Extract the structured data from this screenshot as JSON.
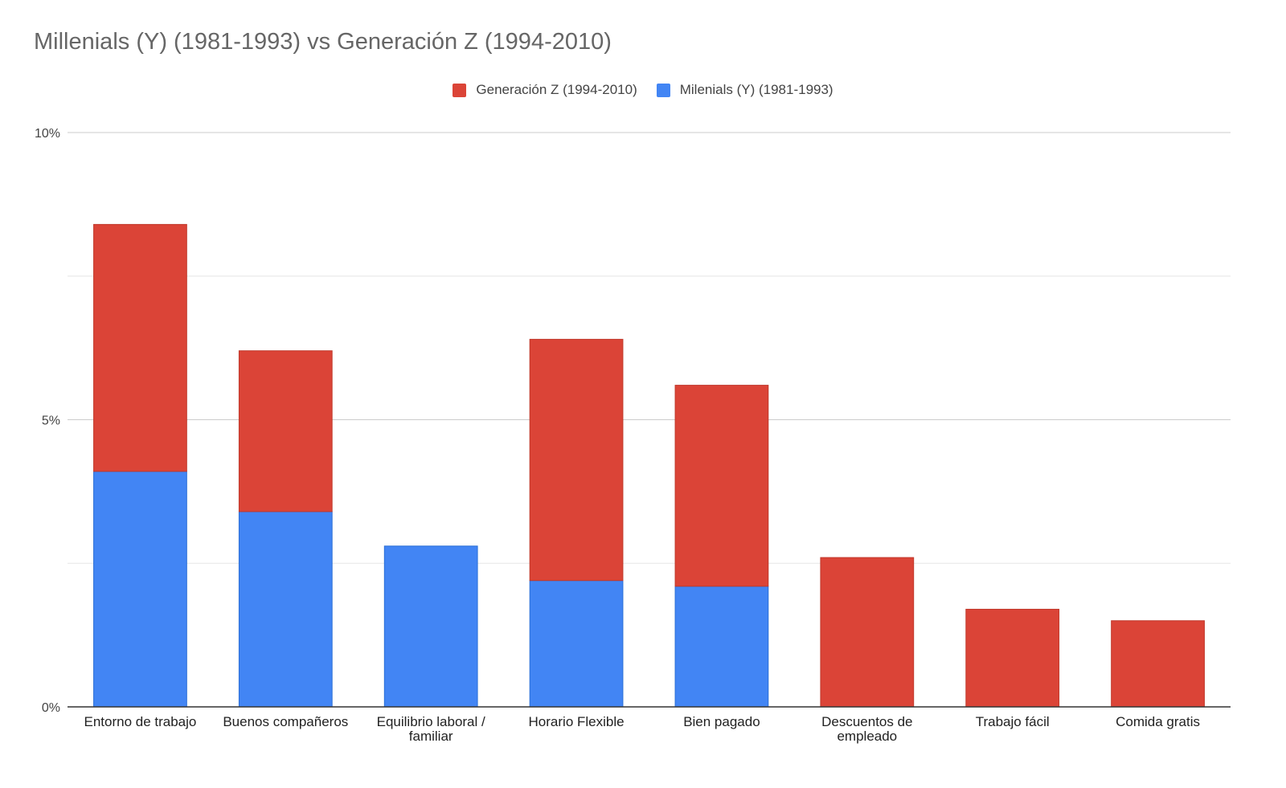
{
  "chart_data": {
    "type": "bar",
    "stacked": true,
    "title": "Millenials (Y) (1981-1993) vs Generación Z (1994-2010)",
    "xlabel": "",
    "ylabel": "",
    "ylim": [
      0,
      10
    ],
    "yticks": [
      {
        "value": 0,
        "label": "0%"
      },
      {
        "value": 5,
        "label": "5%"
      },
      {
        "value": 10,
        "label": "10%"
      }
    ],
    "minor_gridlines": [
      2.5,
      7.5
    ],
    "legend_position": "top-center",
    "categories": [
      [
        "Entorno de trabajo"
      ],
      [
        "Buenos compañeros"
      ],
      [
        "Equilibrio laboral /",
        "familiar"
      ],
      [
        "Horario Flexible"
      ],
      [
        "Bien pagado"
      ],
      [
        "Descuentos de",
        "empleado"
      ],
      [
        "Trabajo fácil"
      ],
      [
        "Comida gratis"
      ]
    ],
    "series": [
      {
        "name": "Milenials (Y) (1981-1993)",
        "color": "#4285f4",
        "values": [
          4.1,
          3.4,
          2.8,
          2.2,
          2.1,
          0,
          0,
          0
        ]
      },
      {
        "name": "Generación Z (1994-2010)",
        "color": "#db4437",
        "values": [
          4.3,
          2.8,
          0,
          4.2,
          3.5,
          2.6,
          1.7,
          1.5
        ]
      }
    ],
    "legend_order": [
      1,
      0
    ]
  }
}
